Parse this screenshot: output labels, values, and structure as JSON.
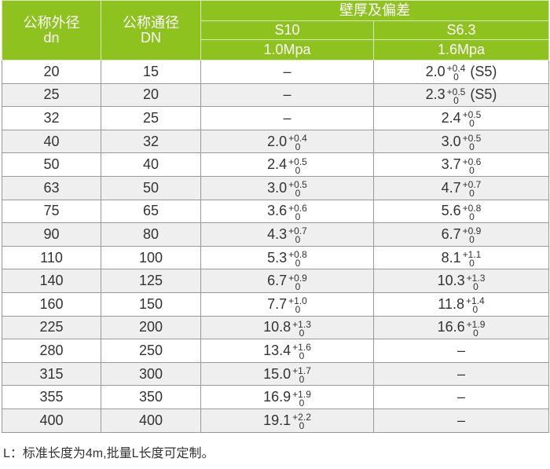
{
  "header": {
    "col1": "公称外径",
    "col1_sub": "dn",
    "col2": "公称通径",
    "col2_sub": "DN",
    "group": "壁厚及偏差",
    "s10": "S10",
    "s10_p": "1.0Mpa",
    "s63": "S6.3",
    "s63_p": "1.6Mpa"
  },
  "rows": [
    {
      "dn": "20",
      "DN": "15",
      "s10": null,
      "s63": {
        "v": "2.0",
        "up": "+0.4",
        "lo": "0",
        "note": "(S5)"
      }
    },
    {
      "dn": "25",
      "DN": "20",
      "s10": null,
      "s63": {
        "v": "2.3",
        "up": "+0.5",
        "lo": "0",
        "note": "(S5)"
      }
    },
    {
      "dn": "32",
      "DN": "25",
      "s10": null,
      "s63": {
        "v": "2.4",
        "up": "+0.5",
        "lo": "0"
      }
    },
    {
      "dn": "40",
      "DN": "32",
      "s10": {
        "v": "2.0",
        "up": "+0.4",
        "lo": "0"
      },
      "s63": {
        "v": "3.0",
        "up": "+0.5",
        "lo": "0"
      }
    },
    {
      "dn": "50",
      "DN": "40",
      "s10": {
        "v": "2.4",
        "up": "+0.5",
        "lo": "0"
      },
      "s63": {
        "v": "3.7",
        "up": "+0.6",
        "lo": "0"
      }
    },
    {
      "dn": "63",
      "DN": "50",
      "s10": {
        "v": "3.0",
        "up": "+0.5",
        "lo": "0"
      },
      "s63": {
        "v": "4.7",
        "up": "+0.7",
        "lo": "0"
      }
    },
    {
      "dn": "75",
      "DN": "65",
      "s10": {
        "v": "3.6",
        "up": "+0.6",
        "lo": "0"
      },
      "s63": {
        "v": "5.6",
        "up": "+0.8",
        "lo": "0"
      }
    },
    {
      "dn": "90",
      "DN": "80",
      "s10": {
        "v": "4.3",
        "up": "+0.7",
        "lo": "0"
      },
      "s63": {
        "v": "6.7",
        "up": "+0.9",
        "lo": "0"
      }
    },
    {
      "dn": "110",
      "DN": "100",
      "s10": {
        "v": "5.3",
        "up": "+0.8",
        "lo": "0"
      },
      "s63": {
        "v": "8.1",
        "up": "+1.1",
        "lo": "0"
      }
    },
    {
      "dn": "140",
      "DN": "125",
      "s10": {
        "v": "6.7",
        "up": "+0.9",
        "lo": "0"
      },
      "s63": {
        "v": "10.3",
        "up": "+1.3",
        "lo": "0"
      }
    },
    {
      "dn": "160",
      "DN": "150",
      "s10": {
        "v": "7.7",
        "up": "+1.0",
        "lo": "0"
      },
      "s63": {
        "v": "11.8",
        "up": "+1.4",
        "lo": "0"
      }
    },
    {
      "dn": "225",
      "DN": "200",
      "s10": {
        "v": "10.8",
        "up": "+1.3",
        "lo": "0"
      },
      "s63": {
        "v": "16.6",
        "up": "+1.9",
        "lo": "0"
      }
    },
    {
      "dn": "280",
      "DN": "250",
      "s10": {
        "v": "13.4",
        "up": "+1.6",
        "lo": "0"
      },
      "s63": null
    },
    {
      "dn": "315",
      "DN": "300",
      "s10": {
        "v": "15.0",
        "up": "+1.7",
        "lo": "0"
      },
      "s63": null
    },
    {
      "dn": "355",
      "DN": "350",
      "s10": {
        "v": "16.9",
        "up": "+1.9",
        "lo": "0"
      },
      "s63": null
    },
    {
      "dn": "400",
      "DN": "400",
      "s10": {
        "v": "19.1",
        "up": "+2.2",
        "lo": "0"
      },
      "s63": null
    }
  ],
  "dash": "–",
  "footer": "L：标准长度为4m,批量L长度可定制。",
  "colors": {
    "header_bg": "#8dc21f",
    "alt_row": "#efefef"
  }
}
